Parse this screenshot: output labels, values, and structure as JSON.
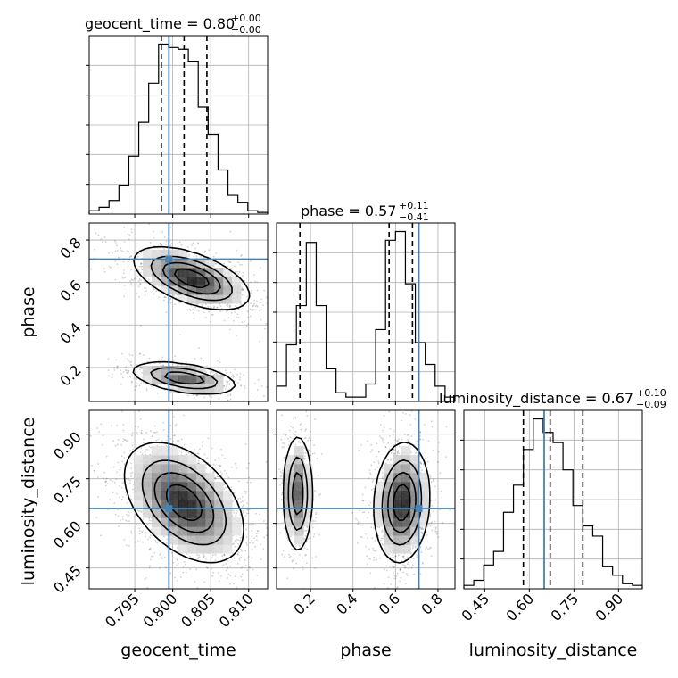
{
  "colors": {
    "truth": "#4682b4",
    "hist": "#000000",
    "grid": "#b0b0b0",
    "contour": "#000000"
  },
  "chart_data": {
    "type": "corner",
    "parameters": [
      {
        "name": "geocent_time",
        "label": "geocent_time",
        "title": "geocent_time = 0.80",
        "title_plus": "+0.00",
        "title_minus": "−0.00",
        "range": [
          0.789,
          0.8125
        ],
        "ticks": [
          0.795,
          0.8,
          0.805,
          0.81
        ],
        "tick_labels": [
          "0.795",
          "0.800",
          "0.805",
          "0.810"
        ],
        "truth": 0.7995,
        "quantiles": [
          0.7985,
          0.8015,
          0.8045
        ],
        "hist_bins": [
          0.789,
          0.8125
        ],
        "hist_counts": [
          0.02,
          0.04,
          0.08,
          0.17,
          0.34,
          0.54,
          0.77,
          1.0,
          0.98,
          0.97,
          0.9,
          0.63,
          0.47,
          0.26,
          0.11,
          0.07,
          0.02,
          0.01
        ]
      },
      {
        "name": "phase",
        "label": "phase",
        "title": "phase = 0.57",
        "title_plus": "+0.11",
        "title_minus": "−0.41",
        "range": [
          0.04,
          0.88
        ],
        "ticks": [
          0.2,
          0.4,
          0.6,
          0.8
        ],
        "tick_labels": [
          "0.2",
          "0.4",
          "0.6",
          "0.8"
        ],
        "truth": 0.71,
        "quantiles": [
          0.15,
          0.57,
          0.68
        ],
        "hist_bins": [
          0.04,
          0.88
        ],
        "hist_counts": [
          0.07,
          0.26,
          0.44,
          0.73,
          0.44,
          0.15,
          0.04,
          0.02,
          0.02,
          0.08,
          0.33,
          0.74,
          0.78,
          0.54,
          0.27,
          0.17,
          0.07,
          0.02
        ]
      },
      {
        "name": "luminosity_distance",
        "label": "luminosity_distance",
        "title": "luminosity_distance = 0.67",
        "title_plus": "+0.10",
        "title_minus": "−0.09",
        "range": [
          0.38,
          0.98
        ],
        "ticks": [
          0.45,
          0.6,
          0.75,
          0.9
        ],
        "tick_labels": [
          "0.45",
          "0.60",
          "0.75",
          "0.90"
        ],
        "truth": 0.65,
        "quantiles": [
          0.58,
          0.67,
          0.78
        ],
        "hist_bins": [
          0.38,
          0.98
        ],
        "hist_counts": [
          0.02,
          0.05,
          0.14,
          0.22,
          0.45,
          0.61,
          0.82,
          1.0,
          0.92,
          0.86,
          0.7,
          0.49,
          0.37,
          0.31,
          0.13,
          0.08,
          0.03,
          0.02
        ]
      }
    ],
    "joint": [
      {
        "x": "geocent_time",
        "y": "phase",
        "modes": [
          {
            "cx": 0.8025,
            "cy": 0.62,
            "sx": 0.0032,
            "sy": 0.062,
            "rho": -0.55,
            "weight": 0.72
          },
          {
            "cx": 0.8015,
            "cy": 0.15,
            "sx": 0.003,
            "sy": 0.033,
            "rho": -0.45,
            "weight": 0.28
          }
        ]
      },
      {
        "x": "geocent_time",
        "y": "luminosity_distance",
        "modes": [
          {
            "cx": 0.8015,
            "cy": 0.67,
            "sx": 0.0033,
            "sy": 0.085,
            "rho": -0.45,
            "weight": 1.0
          }
        ]
      },
      {
        "x": "phase",
        "y": "luminosity_distance",
        "modes": [
          {
            "cx": 0.63,
            "cy": 0.67,
            "sx": 0.055,
            "sy": 0.085,
            "rho": 0.1,
            "weight": 0.72
          },
          {
            "cx": 0.14,
            "cy": 0.7,
            "sx": 0.03,
            "sy": 0.085,
            "rho": 0.0,
            "weight": 0.28
          }
        ]
      }
    ],
    "grid": true
  }
}
